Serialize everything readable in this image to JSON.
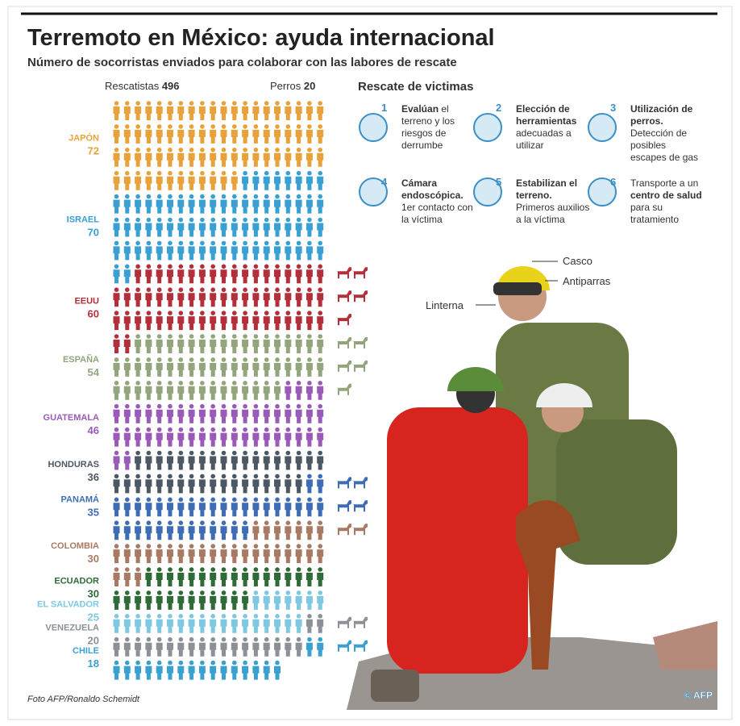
{
  "chart_data": {
    "type": "pictogram",
    "title": "Terremoto en México: ayuda internacional",
    "subtitle": "Número de socorristas enviados para colaborar con las labores de rescate",
    "rescuers_label": "Rescatistas",
    "rescuers_total": 496,
    "dogs_label": "Perros",
    "dogs_total": 20,
    "icons_per_row": 20,
    "categories": [
      "JAPÓN",
      "ISRAEL",
      "EEUU",
      "ESPAÑA",
      "GUATEMALA",
      "HONDURAS",
      "PANAMÁ",
      "COLOMBIA",
      "ECUADOR",
      "EL SALVADOR",
      "VENEZUELA",
      "CHILE"
    ],
    "values": [
      72,
      70,
      60,
      54,
      46,
      36,
      35,
      30,
      30,
      25,
      20,
      18
    ],
    "dogs": [
      0,
      0,
      5,
      5,
      0,
      0,
      4,
      2,
      0,
      0,
      2,
      2
    ],
    "colors": [
      "#e9a23b",
      "#3a9fd2",
      "#b3303b",
      "#93a57d",
      "#9a5bb8",
      "#4c5863",
      "#3f6db5",
      "#a97a63",
      "#2f6b36",
      "#7fc8e2",
      "#8c9197",
      "#3aa0cf"
    ]
  },
  "steps_title": "Rescate de victimas",
  "steps": [
    {
      "number": 1,
      "parts": [
        {
          "text": "Evalúan",
          "bold": true
        },
        {
          "text": " el terreno y los riesgos de derrumbe",
          "bold": false
        }
      ]
    },
    {
      "number": 2,
      "parts": [
        {
          "text": "Elección de herramientas",
          "bold": true
        },
        {
          "text": " adecuadas a utilizar",
          "bold": false
        }
      ]
    },
    {
      "number": 3,
      "parts": [
        {
          "text": "Utilización de perros.",
          "bold": true
        },
        {
          "text": " Detección de posibles escapes de gas",
          "bold": false
        }
      ]
    },
    {
      "number": 4,
      "parts": [
        {
          "text": "Cámara endoscópica.",
          "bold": true
        },
        {
          "text": " 1er contacto con la víctima",
          "bold": false
        }
      ]
    },
    {
      "number": 5,
      "parts": [
        {
          "text": "Estabilizan el terreno.",
          "bold": true
        },
        {
          "text": " Primeros auxilios a la víctima",
          "bold": false
        }
      ]
    },
    {
      "number": 6,
      "parts": [
        {
          "text": "Transporte a un ",
          "bold": false
        },
        {
          "text": "centro de salud",
          "bold": true
        },
        {
          "text": " para su tratamiento",
          "bold": false
        }
      ]
    }
  ],
  "photo_labels": [
    "Casco",
    "Antiparras",
    "Linterna"
  ],
  "credit": "Foto AFP/Ronaldo Schemidt",
  "logo": "© AFP"
}
